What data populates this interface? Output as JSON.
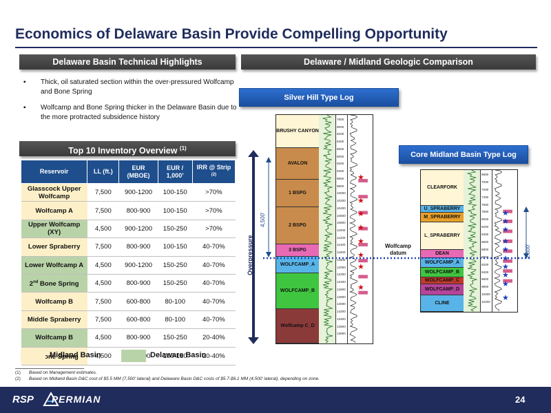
{
  "title": "Economics of Delaware Basin Provide Compelling Opportunity",
  "sections": {
    "highlights": "Delaware Basin Technical Highlights",
    "comparison": "Delaware / Midland Geologic Comparison",
    "inventory": "Top 10 Inventory Overview",
    "inventory_note": "(1)"
  },
  "bullets": [
    "Thick, oil saturated section within the over-pressured Wolfcamp and Bone Spring",
    "Wolfcamp and Bone Spring thicker in the Delaware Basin due to the more protracted subsidence history"
  ],
  "table": {
    "headers": [
      "Reservoir",
      "LL (ft.)",
      "EUR (MBOE)",
      "EUR / 1,000’",
      "IRR @ Strip"
    ],
    "header_note": "(2)",
    "rows": [
      {
        "reservoir": "Glasscock Upper Wolfcamp",
        "ll": "7,500",
        "eur": "900-1200",
        "eur1k": "100-150",
        "irr": ">70%",
        "basin": "midland"
      },
      {
        "reservoir": "Wolfcamp A",
        "ll": "7,500",
        "eur": "800-900",
        "eur1k": "100-150",
        "irr": ">70%",
        "basin": "midland"
      },
      {
        "reservoir": "Upper Wolfcamp (XY)",
        "ll": "4,500",
        "eur": "900-1200",
        "eur1k": "150-250",
        "irr": ">70%",
        "basin": "delaware"
      },
      {
        "reservoir": "Lower Spraberry",
        "ll": "7,500",
        "eur": "800-900",
        "eur1k": "100-150",
        "irr": "40-70%",
        "basin": "midland"
      },
      {
        "reservoir": "Lower Wolfcamp A",
        "ll": "4,500",
        "eur": "900-1200",
        "eur1k": "150-250",
        "irr": "40-70%",
        "basin": "delaware"
      },
      {
        "reservoir_pre": "2",
        "reservoir_sup": "nd",
        "reservoir_post": " Bone Spring",
        "ll": "4,500",
        "eur": "800-900",
        "eur1k": "150-250",
        "irr": "40-70%",
        "basin": "delaware"
      },
      {
        "reservoir": "Wolfcamp B",
        "ll": "7,500",
        "eur": "600-800",
        "eur1k": "80-100",
        "irr": "40-70%",
        "basin": "midland"
      },
      {
        "reservoir": "Middle Spraberry",
        "ll": "7,500",
        "eur": "600-800",
        "eur1k": "80-100",
        "irr": "40-70%",
        "basin": "midland"
      },
      {
        "reservoir": "Wolfcamp B",
        "ll": "4,500",
        "eur": "800-900",
        "eur1k": "150-250",
        "irr": "20-40%",
        "basin": "delaware"
      },
      {
        "reservoir_pre": "3",
        "reservoir_sup": "rd",
        "reservoir_post": " Bone Spring",
        "ll": "4,500",
        "eur": "600-800",
        "eur1k": "100-150",
        "irr": "20-40%",
        "basin": "midland"
      }
    ]
  },
  "legend": {
    "midland": "Midland Basin",
    "delaware": "Delaware Basin",
    "midland_color": "#fdf0c8",
    "delaware_color": "#b9d3a8"
  },
  "footnotes": [
    {
      "num": "(1)",
      "text": "Based on Management estimates."
    },
    {
      "num": "(2)",
      "text": "Based on Midland Basin D&C cost of $5.5 MM (7,500’ lateral) and Delaware Basin D&C costs of $5.7-$6.1 MM (4,500’ lateral), depending on zone."
    }
  ],
  "silver_hill": {
    "label": "Silver Hill Type Log",
    "zones": [
      "BRUSHY CANYON",
      "AVALON",
      "1 BSPG",
      "2 BSPG",
      "3 BSPG",
      "WOLFCAMP_A",
      "WOLFCAMP_B",
      "Wolfcamp C_D"
    ],
    "zone_colors": [
      "#fff6d5",
      "#c98b4b",
      "#c98b4b",
      "#c98b4b",
      "#e86ab5",
      "#58b4e8",
      "#3fc53f",
      "#8b3a3a"
    ],
    "depths": [
      "7600",
      "8000",
      "8200",
      "8400",
      "8600",
      "9000",
      "9200",
      "9400",
      "9600",
      "9800",
      "10000",
      "10200",
      "10400",
      "10600",
      "10800",
      "11000",
      "11200",
      "11400",
      "11600",
      "11800",
      "12000",
      "12200",
      "12400",
      "12600",
      "12800",
      "13000",
      "13200",
      "13400",
      "13600",
      "13800"
    ]
  },
  "midland_log": {
    "label": "Core Midland Basin Type Log",
    "zones": [
      "CLEARFORK",
      "U_SPRABERRY",
      "M_SPRABERRY",
      "L_SPRABERRY",
      "DEAN",
      "WOLFCAMP_A",
      "WOLFCAMP_B",
      "WOLFCAMP_C",
      "WOLFCAMP_D",
      "CLINE"
    ],
    "zone_colors": [
      "#fff6d5",
      "#58b4e8",
      "#e8a02a",
      "#fff6d5",
      "#e86ab5",
      "#58b4e8",
      "#3fc53f",
      "#c0392b",
      "#b5449a",
      "#58b4e8"
    ],
    "depths": [
      "6800",
      "7000",
      "7200",
      "7400",
      "7600",
      "7800",
      "8000",
      "8200",
      "8400",
      "8600",
      "8800",
      "9000",
      "9200",
      "9400",
      "9600",
      "9800",
      "10000",
      "10200"
    ]
  },
  "annotations": {
    "overpressure": "Overpressure",
    "thick_delaware": "4,500'",
    "thick_midland": "1,800'",
    "datum": "Wolfcamp datum"
  },
  "logo": {
    "rsp": "RSP",
    "permian": "PERMIAN"
  },
  "page_number": "24",
  "colors": {
    "navy": "#1f2c5c",
    "table_header": "#1f4e8c",
    "star_red": "#d01010",
    "star_blue": "#1d3fb5"
  }
}
